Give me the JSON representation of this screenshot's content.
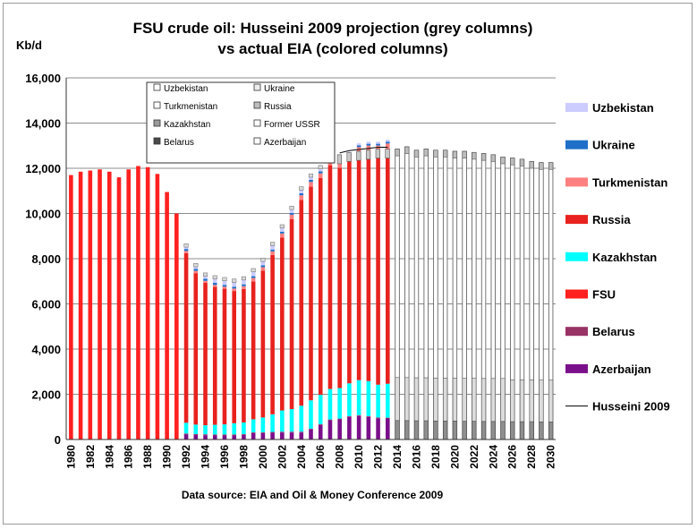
{
  "chart_data": {
    "type": "bar",
    "title_line1": "FSU crude oil: Husseini 2009 projection  (grey columns)",
    "title_line2": "vs actual EIA (colored columns)",
    "ylabel": "Kb/d",
    "ylim": [
      0,
      16000
    ],
    "yticks": [
      "0",
      "2,000",
      "4,000",
      "6,000",
      "8,000",
      "10,000",
      "12,000",
      "14,000",
      "16,000"
    ],
    "xticks": [
      "1980",
      "1982",
      "1984",
      "1986",
      "1988",
      "1990",
      "1992",
      "1994",
      "1996",
      "1998",
      "2000",
      "2002",
      "2004",
      "2006",
      "2008",
      "2010",
      "2012",
      "2014",
      "2016",
      "2018",
      "2020",
      "2022",
      "2024",
      "2026",
      "2028",
      "2030"
    ],
    "grid": true,
    "source": "Data source: EIA and Oil & Money Conference 2009",
    "legend_position": "right",
    "colors": {
      "Uzbekistan": "#ccccff",
      "Ukraine": "#1f6fc8",
      "Turkmenistan": "#ff8080",
      "Russia": "#e8221e",
      "Kazakhstan": "#00ffff",
      "FSU": "#ff2020",
      "Belarus": "#993366",
      "Azerbaijan": "#7a0f8a",
      "Husseini 2009": "#000000"
    },
    "legend": [
      "Uzbekistan",
      "Ukraine",
      "Turkmenistan",
      "Russia",
      "Kazakhstan",
      "FSU",
      "Belarus",
      "Azerbaijan",
      "Husseini 2009"
    ],
    "inset_legend": [
      "Uzbekistan",
      "Ukraine",
      "Turkmenistan",
      "Russia",
      "Kazakhstan",
      "Former USSR",
      "Belarus",
      "Azerbaijan"
    ],
    "fsu_years": [
      1980,
      1981,
      1982,
      1983,
      1984,
      1985,
      1986,
      1987,
      1988,
      1989,
      1990,
      1991
    ],
    "fsu_values": [
      11700,
      11850,
      11900,
      11950,
      11850,
      11600,
      11950,
      12100,
      12050,
      11750,
      10950,
      10000
    ],
    "eia_years": [
      1992,
      1993,
      1994,
      1995,
      1996,
      1997,
      1998,
      1999,
      2000,
      2001,
      2002,
      2003,
      2004,
      2005,
      2006,
      2007,
      2008,
      2009,
      2010,
      2011,
      2012,
      2013
    ],
    "series": [
      {
        "name": "Azerbaijan",
        "values": [
          220,
          200,
          190,
          180,
          180,
          180,
          200,
          280,
          280,
          300,
          310,
          310,
          310,
          440,
          640,
          850,
          890,
          1000,
          1040,
          1000,
          940,
          930
        ]
      },
      {
        "name": "Belarus",
        "values": [
          40,
          40,
          40,
          40,
          40,
          40,
          35,
          35,
          35,
          35,
          35,
          35,
          35,
          35,
          35,
          35,
          35,
          35,
          35,
          35,
          35,
          35
        ]
      },
      {
        "name": "Kazakhstan",
        "values": [
          480,
          420,
          400,
          430,
          450,
          500,
          520,
          580,
          660,
          780,
          940,
          1000,
          1150,
          1260,
          1300,
          1350,
          1350,
          1450,
          1550,
          1550,
          1450,
          1500
        ]
      },
      {
        "name": "Russia",
        "values": [
          7500,
          6700,
          6300,
          6100,
          6000,
          5850,
          5900,
          6100,
          6500,
          7050,
          7650,
          8400,
          9100,
          9450,
          9600,
          9900,
          9750,
          9850,
          10100,
          10200,
          10350,
          10400
        ]
      },
      {
        "name": "Turkmenistan",
        "values": [
          100,
          100,
          90,
          90,
          90,
          110,
          130,
          150,
          150,
          160,
          180,
          200,
          210,
          210,
          200,
          200,
          210,
          210,
          210,
          220,
          230,
          230
        ]
      },
      {
        "name": "Ukraine",
        "values": [
          90,
          90,
          90,
          90,
          80,
          80,
          80,
          80,
          80,
          80,
          80,
          80,
          90,
          90,
          90,
          90,
          80,
          80,
          80,
          80,
          80,
          80
        ]
      },
      {
        "name": "Uzbekistan",
        "values": [
          80,
          90,
          110,
          170,
          180,
          190,
          190,
          190,
          170,
          170,
          160,
          150,
          140,
          120,
          110,
          100,
          100,
          100,
          90,
          90,
          90,
          90
        ]
      }
    ],
    "husseini_years": [
      2008,
      2009,
      2010,
      2011,
      2012,
      2013,
      2014,
      2015,
      2016,
      2017,
      2018,
      2019,
      2020,
      2021,
      2022,
      2023,
      2024,
      2025,
      2026,
      2027,
      2028,
      2029,
      2030
    ],
    "husseini_total": [
      12600,
      12700,
      12750,
      12800,
      12850,
      12850,
      12850,
      12950,
      12800,
      12850,
      12800,
      12800,
      12750,
      12750,
      12700,
      12650,
      12600,
      12500,
      12450,
      12400,
      12300,
      12250,
      12250
    ],
    "husseini_lower_section": [
      900,
      870,
      860,
      850,
      850,
      840,
      840,
      840,
      830,
      830,
      820,
      820,
      820,
      810,
      810,
      800,
      800,
      800,
      790,
      790,
      790,
      780,
      780
    ],
    "husseini_middle_section": [
      1900,
      1900,
      1900,
      1900,
      1900,
      1900,
      1900,
      1900,
      1900,
      1900,
      1900,
      1900,
      1900,
      1900,
      1900,
      1900,
      1900,
      1900,
      1850,
      1850,
      1850,
      1850,
      1850
    ]
  }
}
